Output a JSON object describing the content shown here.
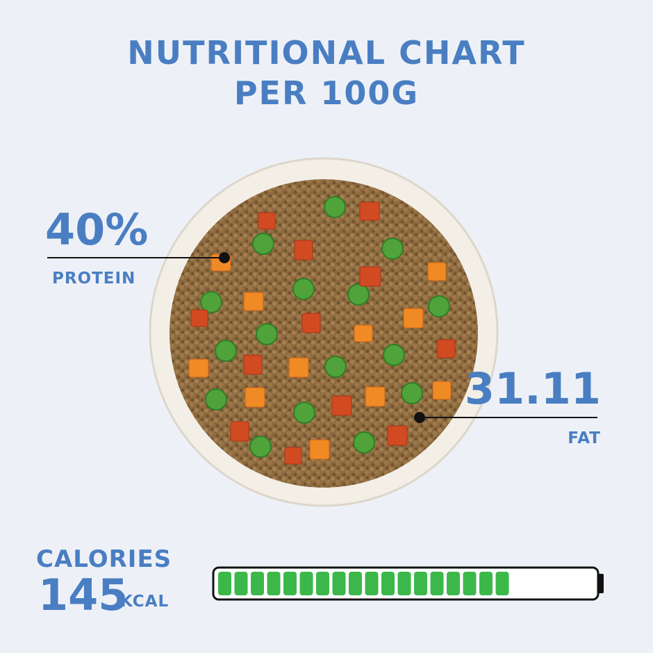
{
  "header": {
    "title_line1": "NUTRITIONAL CHART",
    "title_line2": "PER 100G"
  },
  "protein": {
    "value": "40%",
    "label": "PROTEIN"
  },
  "fat": {
    "value": "31.11",
    "label": "FAT"
  },
  "calories": {
    "label": "CALORIES",
    "value": "145",
    "unit": "KCAL"
  }
}
